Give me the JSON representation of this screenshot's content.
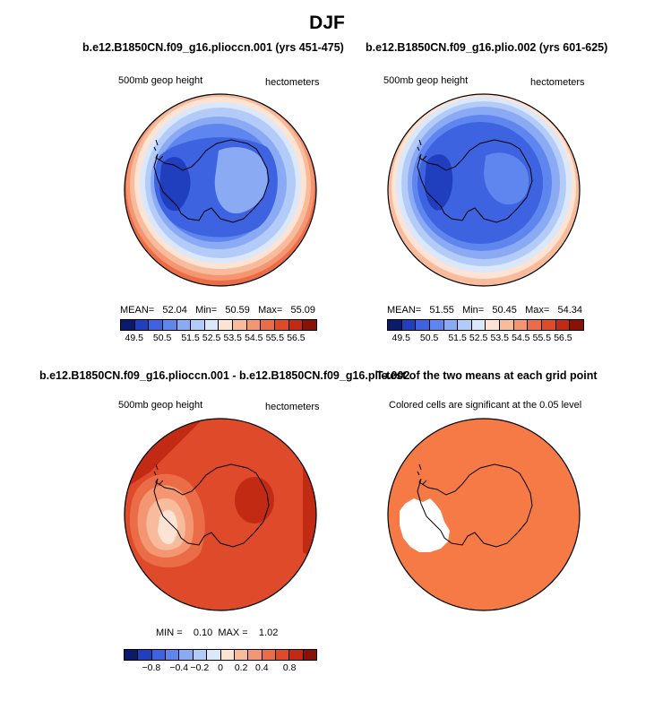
{
  "title": "DJF",
  "panels": {
    "p1": {
      "title": "b.e12.B1850CN.f09_g16.plioccn.001 (yrs 451-475)",
      "left_label": "500mb geop height",
      "right_label": "hectometers",
      "stats": "MEAN=   52.04   Min=   50.59   Max=   55.09"
    },
    "p2": {
      "title": "b.e12.B1850CN.f09_g16.plio.002 (yrs 601-625)",
      "left_label": "500mb geop height",
      "right_label": "hectometers",
      "stats": "MEAN=   51.55   Min=   50.45   Max=   54.34"
    },
    "p3": {
      "title": "b.e12.B1850CN.f09_g16.plioccn.001 - b.e12.B1850CN.f09_g16.plio.002",
      "left_label": "500mb geop height",
      "right_label": "hectometers",
      "stats": "MIN =    0.10  MAX =    1.02"
    },
    "p4": {
      "title": "T-test of the two means at each grid point",
      "left_label": "Colored cells are significant at the 0.05 level"
    }
  },
  "colorbar_top": {
    "colors": [
      "#0a1b6e",
      "#1f3fbf",
      "#3d63e0",
      "#5f86ef",
      "#8aaaf4",
      "#b3cbf8",
      "#dbe7fb",
      "#fde3d4",
      "#f8bc9c",
      "#f39671",
      "#ea6d48",
      "#df4a2a",
      "#c32a14",
      "#8b1108"
    ],
    "ticks": [
      "49.5",
      "50.5",
      "51.5",
      "52.5",
      "53.5",
      "54.5",
      "55.5",
      "56.5"
    ]
  },
  "colorbar_diff": {
    "colors": [
      "#0a1b6e",
      "#1f3fbf",
      "#3d63e0",
      "#5f86ef",
      "#8aaaf4",
      "#b3cbf8",
      "#dbe7fb",
      "#fde3d4",
      "#f8bc9c",
      "#f39671",
      "#ea6d48",
      "#df4a2a",
      "#c32a14",
      "#8b1108"
    ],
    "ticks": [
      "−0.8",
      "−0.4",
      "−0.2",
      "0",
      "0.2",
      "0.4",
      "0.8"
    ]
  }
}
